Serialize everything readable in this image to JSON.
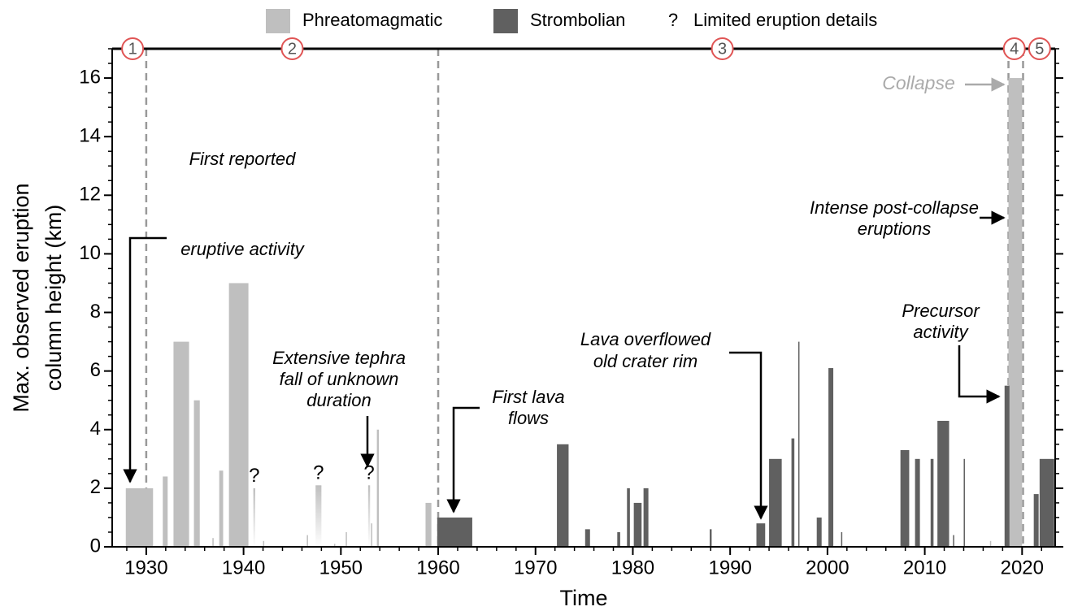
{
  "chart_data": {
    "type": "bar",
    "xlabel": "Time",
    "ylabel": [
      "Max. observed eruption",
      "column height (km)"
    ],
    "xlim": [
      1926.5,
      2023.4
    ],
    "ylim": [
      0,
      17
    ],
    "xticks": [
      1930,
      1940,
      1950,
      1960,
      1970,
      1980,
      1990,
      2000,
      2010,
      2020
    ],
    "yticks": [
      0,
      2,
      4,
      6,
      8,
      10,
      12,
      14,
      16
    ],
    "series": [
      {
        "name": "Phreatomagmatic",
        "color": "#bfbfbf",
        "start": [
          1927.9,
          1931.7,
          1932.8,
          1934.9,
          1936.8,
          1937.5,
          1938.5,
          1942.0,
          1946.5,
          1949.3,
          1950.5,
          1953.1,
          1953.7,
          1958.7,
          2016.7,
          2018.6
        ],
        "end": [
          1930.7,
          1932.2,
          1934.4,
          1935.5,
          1936.9,
          1937.9,
          1940.5,
          1942.1,
          1946.6,
          1949.4,
          1950.6,
          1953.2,
          1953.9,
          1959.3,
          2016.8,
          2020.0
        ],
        "values": [
          2,
          2.4,
          7,
          5,
          0.3,
          2.6,
          9,
          0.2,
          0.4,
          0.1,
          0.5,
          0.8,
          4,
          1.5,
          0.2,
          16
        ]
      },
      {
        "name": "Strombolian",
        "color": "#606060",
        "start": [
          1959.9,
          1972.2,
          1975.1,
          1978.4,
          1979.4,
          1980.1,
          1981.1,
          1987.9,
          1992.7,
          1994.0,
          1996.3,
          1997.0,
          1998.9,
          2000.1,
          2001.4,
          2007.5,
          2009.0,
          2010.6,
          2011.3,
          2012.9,
          2014.0,
          2018.2,
          2021.2,
          2021.8
        ],
        "end": [
          1963.5,
          1973.4,
          1975.6,
          1978.7,
          1979.7,
          1980.9,
          1981.6,
          1988.1,
          1993.6,
          1995.3,
          1996.6,
          1997.1,
          1999.4,
          2000.6,
          2001.5,
          2008.4,
          2009.5,
          2010.9,
          2012.5,
          2013.0,
          2014.1,
          2018.7,
          2021.7,
          2023.3
        ],
        "values": [
          1,
          3.5,
          0.6,
          0.5,
          2,
          1.5,
          2,
          0.6,
          0.8,
          3,
          3.7,
          7,
          1,
          6.1,
          0.5,
          3.3,
          3,
          3,
          4.3,
          0.4,
          3,
          5.5,
          1.8,
          3
        ]
      },
      {
        "name": "Limited eruption details",
        "marker": "?",
        "color": "#bfbfbf",
        "start": [
          1941.0,
          1947.4,
          1952.8
        ],
        "end": [
          1941.2,
          1948.0,
          1953.0
        ],
        "values": [
          2,
          2.1,
          2.1
        ]
      }
    ],
    "phase_boundaries": [
      1930,
      1960,
      2018.6,
      2020.1
    ],
    "phases": [
      {
        "label": "1",
        "x": 1928.6
      },
      {
        "label": "2",
        "x": 1945.0
      },
      {
        "label": "3",
        "x": 1989.2
      },
      {
        "label": "4",
        "x": 2019.2
      },
      {
        "label": "5",
        "x": 2021.8
      }
    ],
    "annotations": [
      {
        "lines": [
          "First reported",
          "eruptive activity"
        ]
      },
      {
        "lines": [
          "Extensive tephra",
          "fall of unknown",
          "duration"
        ]
      },
      {
        "lines": [
          "First lava",
          "flows"
        ]
      },
      {
        "lines": [
          "Lava overflowed",
          "old crater rim"
        ]
      },
      {
        "lines": [
          "Intense post-collapse",
          "eruptions"
        ]
      },
      {
        "lines": [
          "Precursor",
          "activity"
        ]
      },
      {
        "lines": [
          "Collapse"
        ]
      }
    ]
  }
}
